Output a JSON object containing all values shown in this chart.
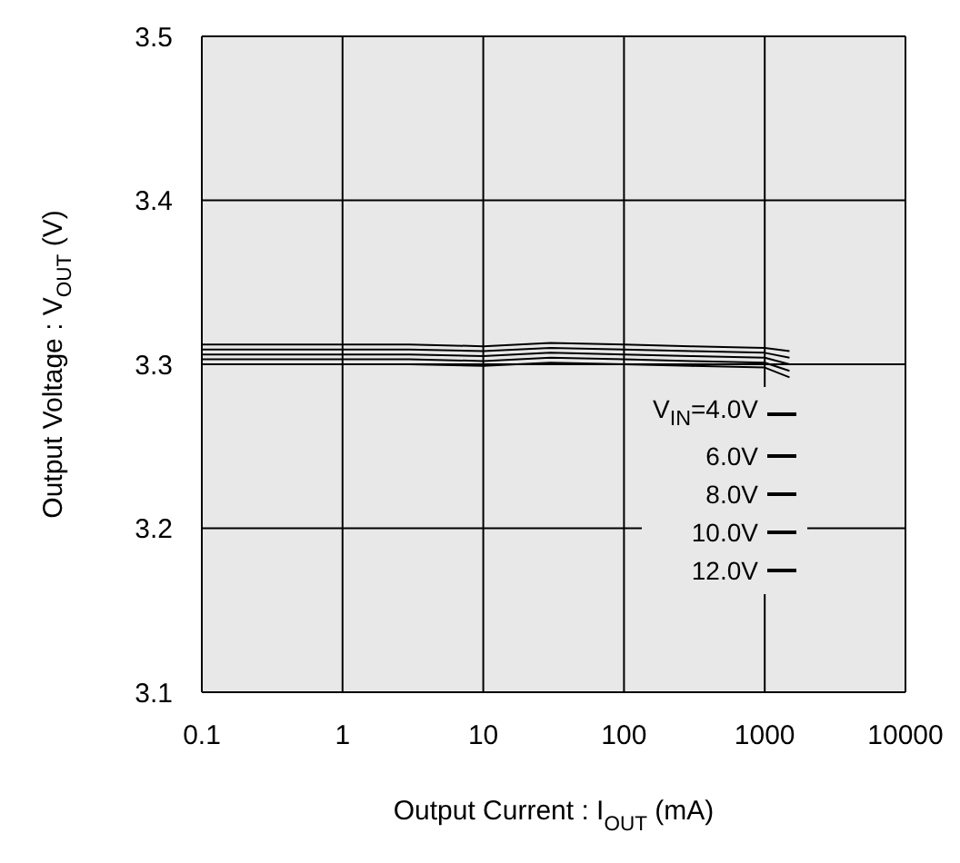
{
  "chart_data": {
    "type": "line",
    "xlabel": "Output Current : I$_{OUT}$ (mA)",
    "ylabel": "Output Voltage : V$_{OUT}$ (V)",
    "log": "x",
    "xlim": [
      0.1,
      10000
    ],
    "xticks": [
      0.1,
      1,
      10,
      100,
      1000,
      10000
    ],
    "ylim": [
      3.1,
      3.5
    ],
    "yticks": [
      3.1,
      3.2,
      3.3,
      3.4,
      3.5
    ],
    "grid": true,
    "legend": "bottom right",
    "x": [
      0.1,
      1,
      3,
      10,
      30,
      100,
      300,
      1000,
      1500
    ],
    "series": [
      {
        "name": "V$_{IN}$=4.0V",
        "color": "#000000",
        "values": [
          3.312,
          3.312,
          3.312,
          3.311,
          3.313,
          3.312,
          3.311,
          3.31,
          3.308
        ]
      },
      {
        "name": "6.0V",
        "color": "#000000",
        "values": [
          3.309,
          3.309,
          3.309,
          3.308,
          3.31,
          3.309,
          3.308,
          3.307,
          3.304
        ]
      },
      {
        "name": "8.0V",
        "color": "#000000",
        "values": [
          3.306,
          3.306,
          3.306,
          3.305,
          3.307,
          3.306,
          3.305,
          3.304,
          3.3
        ]
      },
      {
        "name": "10.0V",
        "color": "#000000",
        "values": [
          3.303,
          3.303,
          3.303,
          3.302,
          3.304,
          3.303,
          3.302,
          3.301,
          3.296
        ]
      },
      {
        "name": "12.0V",
        "color": "#000000",
        "values": [
          3.3,
          3.3,
          3.3,
          3.299,
          3.301,
          3.3,
          3.299,
          3.298,
          3.292
        ]
      }
    ]
  }
}
